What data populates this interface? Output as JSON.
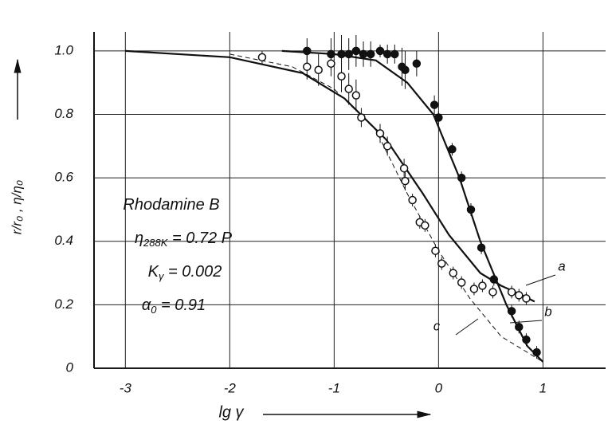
{
  "chart_data": {
    "type": "scatter",
    "xlabel": "lg γ",
    "ylabel": "r/r₀ , η/η₀",
    "xlim": [
      -3.3,
      1.6
    ],
    "ylim": [
      0,
      1.06
    ],
    "xticks": [
      -3,
      -2,
      -1,
      0,
      1
    ],
    "yticks": [
      0,
      0.2,
      0.4,
      0.6,
      0.8,
      {
        "value": 1,
        "label": "1.0"
      }
    ],
    "grid": true,
    "series": [
      {
        "marker": "filled",
        "color": "#111111",
        "x": [
          -1.26,
          -1.03,
          -0.93,
          -0.86,
          -0.79,
          -0.72,
          -0.65,
          -0.56,
          -0.49,
          -0.42,
          -0.35,
          -0.32,
          -0.21,
          -0.04,
          0.0,
          0.13,
          0.22,
          0.31,
          0.41,
          0.53,
          0.7,
          0.77,
          0.84,
          0.94
        ],
        "values": [
          1.0,
          0.99,
          0.99,
          0.99,
          1.0,
          0.99,
          0.99,
          1.0,
          0.99,
          0.99,
          0.95,
          0.94,
          0.96,
          0.83,
          0.79,
          0.69,
          0.6,
          0.5,
          0.38,
          0.28,
          0.18,
          0.13,
          0.09,
          0.05
        ],
        "errors": [
          0.04,
          0.05,
          0.06,
          0.05,
          0.05,
          0.04,
          0.04,
          0.02,
          0.03,
          0.03,
          0.06,
          0.06,
          0.04,
          0.03,
          0.02,
          0.02,
          0.02,
          0.02,
          0.02,
          0.02,
          0.02,
          0.02,
          0.02,
          0.02
        ]
      },
      {
        "marker": "open",
        "color": "#111111",
        "x": [
          -1.69,
          -1.26,
          -1.15,
          -1.03,
          -0.93,
          -0.86,
          -0.79,
          -0.74,
          -0.56,
          -0.49,
          -0.33,
          -0.32,
          -0.25,
          -0.18,
          -0.13,
          -0.03,
          0.03,
          0.14,
          0.22,
          0.34,
          0.42,
          0.52,
          0.7,
          0.77,
          0.84
        ],
        "values": [
          0.98,
          0.95,
          0.94,
          0.96,
          0.92,
          0.88,
          0.86,
          0.79,
          0.74,
          0.7,
          0.63,
          0.59,
          0.53,
          0.46,
          0.45,
          0.37,
          0.33,
          0.3,
          0.27,
          0.25,
          0.26,
          0.24,
          0.24,
          0.23,
          0.22
        ],
        "errors": [
          0.02,
          0.04,
          0.05,
          0.04,
          0.05,
          0.05,
          0.05,
          0.03,
          0.03,
          0.03,
          0.03,
          0.03,
          0.02,
          0.02,
          0.02,
          0.02,
          0.02,
          0.02,
          0.02,
          0.02,
          0.02,
          0.02,
          0.02,
          0.02,
          0.02
        ]
      }
    ],
    "curves": [
      {
        "label": "a",
        "style": "solid",
        "x": [
          -3,
          -2,
          -1.3,
          -0.9,
          -0.5,
          -0.15,
          0.1,
          0.4,
          0.6,
          0.8,
          0.92
        ],
        "values": [
          1.0,
          0.98,
          0.93,
          0.85,
          0.72,
          0.55,
          0.42,
          0.3,
          0.26,
          0.23,
          0.21
        ]
      },
      {
        "label": "b",
        "style": "solid",
        "x": [
          -1.5,
          -1,
          -0.6,
          -0.3,
          -0.05,
          0.2,
          0.4,
          0.65,
          0.85,
          1.0
        ],
        "values": [
          1.0,
          0.99,
          0.97,
          0.9,
          0.8,
          0.6,
          0.4,
          0.2,
          0.07,
          0.02
        ]
      },
      {
        "label": "c",
        "style": "dashed",
        "x": [
          -2,
          -1.4,
          -1,
          -0.6,
          -0.3,
          0,
          0.3,
          0.6,
          1.0
        ],
        "values": [
          0.99,
          0.95,
          0.88,
          0.75,
          0.55,
          0.37,
          0.22,
          0.1,
          0.02
        ]
      }
    ],
    "annotations": [
      {
        "main": "Rhodamine B"
      },
      {
        "main": "η",
        "sub": "288K",
        "tail": " = 0.72 P"
      },
      {
        "main": "K",
        "sub": "γ",
        "tail": " = 0.002"
      },
      {
        "main": "α",
        "sub": "0",
        "tail": " = 0.91"
      }
    ]
  }
}
